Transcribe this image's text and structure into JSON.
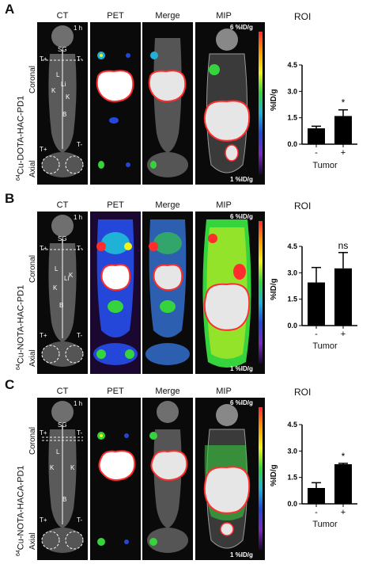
{
  "panels": [
    {
      "letter": "A",
      "tracer_prefix": "64",
      "tracer_rest": "Cu-DOTA-HAC-PD1",
      "headers": {
        "ct": "CT",
        "pet": "PET",
        "merge": "Merge",
        "mip": "MIP"
      },
      "time": "1 h",
      "labels": {
        "coronal": "Coronal",
        "axial": "Axial",
        "sg": "SG",
        "tplus": "T+",
        "tminus": "T-",
        "l": "L",
        "li": "Li",
        "k1": "K",
        "k2": "K",
        "b": "B"
      },
      "scale_top": "6 %ID/g",
      "scale_bottom": "1 %ID/g",
      "roi_title": "ROI"
    },
    {
      "letter": "B",
      "tracer_prefix": "64",
      "tracer_rest": "Cu-NOTA-HAC-PD1",
      "headers": {
        "ct": "CT",
        "pet": "PET",
        "merge": "Merge",
        "mip": "MIP"
      },
      "time": "1 h",
      "labels": {
        "coronal": "Coronal",
        "axial": "Axial",
        "sg": "SG",
        "tplus": "T+",
        "tminus": "T-",
        "l": "L",
        "li": "Li",
        "k1": "K",
        "k2": "K",
        "b": "B"
      },
      "scale_top": "6 %ID/g",
      "scale_bottom": "1 %ID/g",
      "roi_title": "ROI"
    },
    {
      "letter": "C",
      "tracer_prefix": "64",
      "tracer_rest": "Cu-NOTA-HACA-PD1",
      "headers": {
        "ct": "CT",
        "pet": "PET",
        "merge": "Merge",
        "mip": "MIP"
      },
      "time": "1 h",
      "labels": {
        "coronal": "Coronal",
        "axial": "Axial",
        "sg": "SG",
        "tplus": "T+",
        "tminus": "T-",
        "l": "L",
        "li": "",
        "k1": "K",
        "k2": "K",
        "b": "B"
      },
      "scale_top": "6 %ID/g",
      "scale_bottom": "1 %ID/g",
      "roi_title": "ROI"
    }
  ],
  "chart_data": [
    {
      "type": "bar",
      "categories": [
        "-",
        "+"
      ],
      "values": [
        0.9,
        1.6
      ],
      "errors": [
        0.12,
        0.35
      ],
      "ylabel": "%ID/g",
      "xlabel": "Tumor",
      "ylim": [
        0,
        4.5
      ],
      "yticks": [
        "0.0",
        "1.5",
        "3.0",
        "4.5"
      ],
      "significance": "*"
    },
    {
      "type": "bar",
      "categories": [
        "-",
        "+"
      ],
      "values": [
        2.45,
        3.25
      ],
      "errors": [
        0.85,
        0.9
      ],
      "ylabel": "%ID/g",
      "xlabel": "Tumor",
      "ylim": [
        0,
        4.5
      ],
      "yticks": [
        "0.0",
        "1.5",
        "3.0",
        "4.5"
      ],
      "significance": "ns"
    },
    {
      "type": "bar",
      "categories": [
        "-",
        "+"
      ],
      "values": [
        0.9,
        2.25
      ],
      "errors": [
        0.3,
        0.05
      ],
      "ylabel": "%ID/g",
      "xlabel": "Tumor",
      "ylim": [
        0,
        4.5
      ],
      "yticks": [
        "0.0",
        "1.5",
        "3.0",
        "4.5"
      ],
      "significance": "*"
    }
  ]
}
